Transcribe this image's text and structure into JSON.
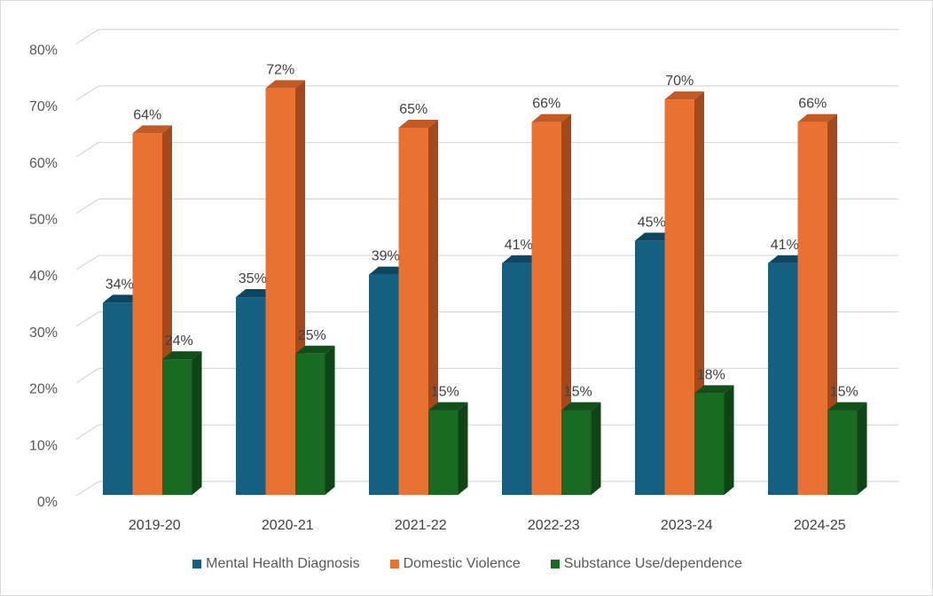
{
  "chart_data": {
    "type": "bar",
    "categories": [
      "2019-20",
      "2020-21",
      "2021-22",
      "2022-23",
      "2023-24",
      "2024-25"
    ],
    "series": [
      {
        "name": "Mental Health Diagnosis",
        "values": [
          34,
          35,
          39,
          41,
          45,
          41
        ],
        "color": "#156082",
        "side": "#0f4a66",
        "top": "#0e4560"
      },
      {
        "name": "Domestic Violence",
        "values": [
          64,
          72,
          65,
          66,
          70,
          66
        ],
        "color": "#e97132",
        "side": "#a24a1e",
        "top": "#c15a25"
      },
      {
        "name": "Substance Use/dependence",
        "values": [
          24,
          25,
          15,
          15,
          18,
          15
        ],
        "color": "#196b24",
        "side": "#0f4417",
        "top": "#124f1a"
      }
    ],
    "y_ticks": [
      "0%",
      "10%",
      "20%",
      "30%",
      "40%",
      "50%",
      "60%",
      "70%",
      "80%"
    ],
    "ylim": [
      0,
      80
    ],
    "grid": true,
    "legend_position": "bottom",
    "data_label_suffix": "%"
  }
}
